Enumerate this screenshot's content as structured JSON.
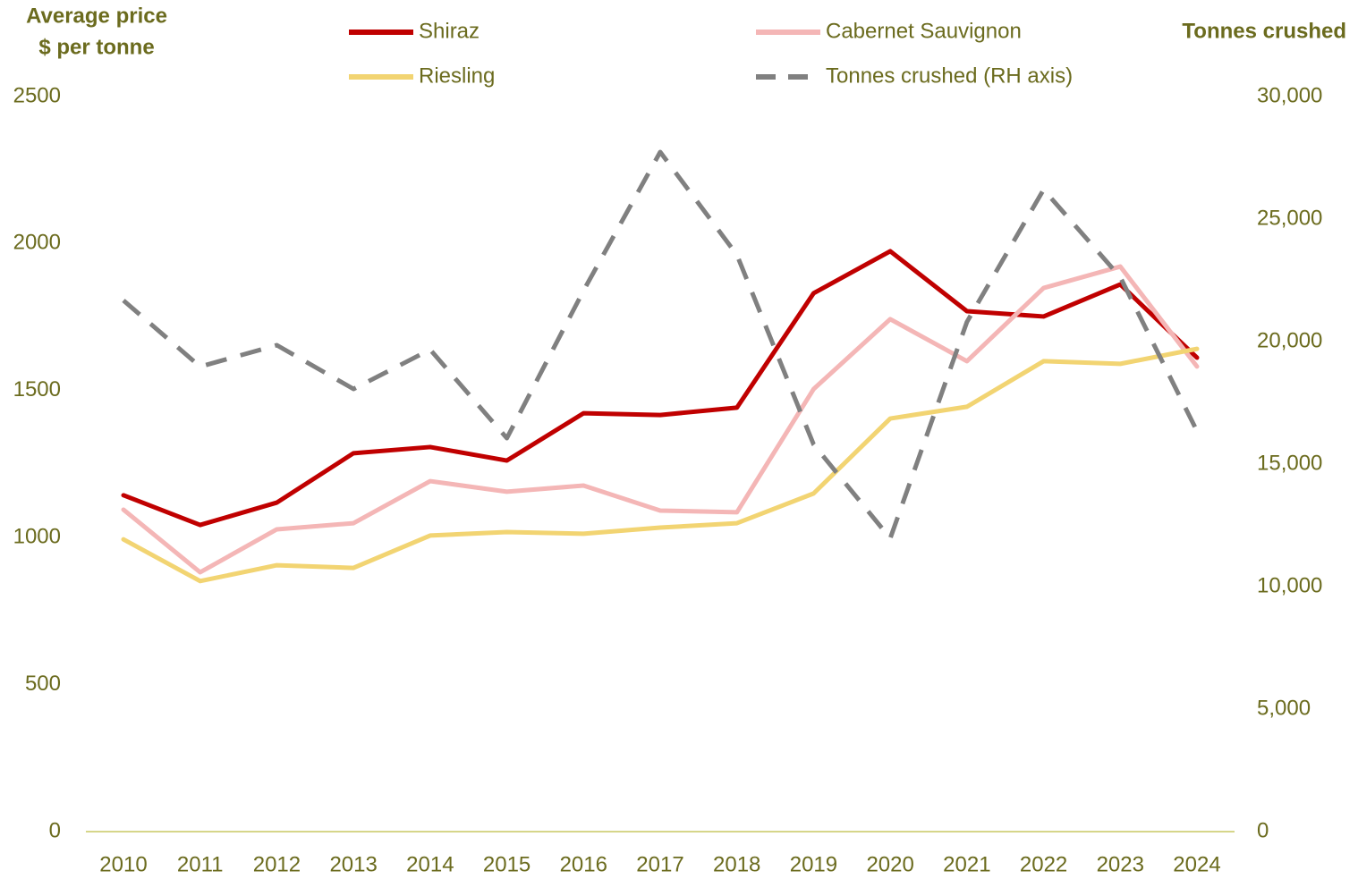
{
  "chart_data": {
    "type": "line",
    "y_label": [
      "Average price",
      "$ per tonne"
    ],
    "y2_label": "Tonnes crushed",
    "categories": [
      "2010",
      "2011",
      "2012",
      "2013",
      "2014",
      "2015",
      "2016",
      "2017",
      "2018",
      "2019",
      "2020",
      "2021",
      "2022",
      "2023",
      "2024"
    ],
    "series": [
      {
        "name": "Shiraz",
        "color": "#c00000",
        "values": [
          1144,
          1043,
          1119,
          1287,
          1308,
          1262,
          1423,
          1417,
          1442,
          1831,
          1974,
          1770,
          1752,
          1861,
          1612
        ]
      },
      {
        "name": "Cabernet Sauvignon",
        "color": "#f4b6b6",
        "values": [
          1095,
          882,
          1028,
          1049,
          1192,
          1156,
          1177,
          1092,
          1086,
          1505,
          1743,
          1600,
          1849,
          1922,
          1582
        ]
      },
      {
        "name": "Riesling",
        "color": "#f2d472",
        "values": [
          994,
          852,
          906,
          897,
          1007,
          1019,
          1013,
          1034,
          1049,
          1150,
          1405,
          1445,
          1600,
          1591,
          1642
        ]
      },
      {
        "name": "Tonnes crushed (RH axis)",
        "color": "#808080",
        "line_style": "dashed",
        "axis": "y2",
        "values": [
          21679,
          18978,
          19854,
          18066,
          19672,
          16058,
          22080,
          27737,
          23540,
          15803,
          11971,
          20803,
          26204,
          22628,
          16350
        ]
      }
    ],
    "ylim": [
      0,
      2500
    ],
    "yticks": [
      0,
      500,
      1000,
      1500,
      2000,
      2500
    ],
    "y2lim": [
      0,
      30000
    ],
    "y2ticks": [
      0,
      {
        "value": 5000,
        "label": "5,000"
      },
      {
        "value": 10000,
        "label": "10,000"
      },
      {
        "value": 15000,
        "label": "15,000"
      },
      {
        "value": 20000,
        "label": "20,000"
      },
      {
        "value": 25000,
        "label": "25,000"
      },
      {
        "value": 30000,
        "label": "30,000"
      }
    ],
    "grid": false
  }
}
